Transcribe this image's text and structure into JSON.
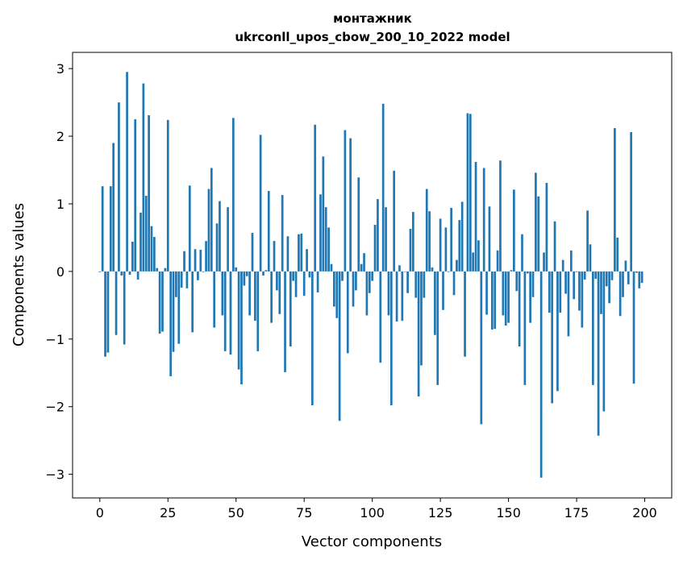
{
  "chart_data": {
    "type": "bar",
    "title": "монтажник",
    "subtitle": "ukrconll_upos_cbow_200_10_2022 model",
    "xlabel": "Vector components",
    "ylabel": "Components values",
    "xlim": [
      -10,
      209.9
    ],
    "ylim": [
      -3.35,
      3.24
    ],
    "xticks": [
      0,
      25,
      50,
      75,
      100,
      125,
      150,
      175,
      200
    ],
    "xtick_labels": [
      "0",
      "25",
      "50",
      "75",
      "100",
      "125",
      "150",
      "175",
      "200"
    ],
    "yticks": [
      -3,
      -2,
      -1,
      0,
      1,
      2,
      3
    ],
    "ytick_labels": [
      "−3",
      "−2",
      "−1",
      "0",
      "1",
      "2",
      "3"
    ],
    "grid": false,
    "bar_color": "#1f77b4",
    "values": [
      -0.01,
      1.26,
      -1.26,
      -1.2,
      1.26,
      1.9,
      -0.94,
      2.5,
      -0.06,
      -1.08,
      2.95,
      -0.05,
      0.44,
      2.25,
      -0.12,
      0.87,
      2.78,
      1.12,
      2.31,
      0.67,
      0.51,
      0.05,
      -0.92,
      -0.89,
      0.05,
      2.24,
      -1.55,
      -1.19,
      -0.38,
      -1.07,
      -0.24,
      0.3,
      -0.25,
      1.27,
      -0.9,
      0.33,
      -0.13,
      0.32,
      -0.01,
      0.45,
      1.22,
      1.53,
      -0.83,
      0.71,
      1.04,
      -0.65,
      -1.18,
      0.95,
      -1.23,
      2.27,
      0.06,
      -1.45,
      -1.67,
      -0.21,
      -0.07,
      -0.65,
      0.57,
      -0.73,
      -1.18,
      2.02,
      -0.06,
      0.02,
      1.19,
      -0.76,
      0.45,
      -0.28,
      -0.63,
      1.13,
      -1.49,
      0.52,
      -1.11,
      -0.14,
      -0.38,
      0.55,
      0.56,
      -0.36,
      0.33,
      -0.09,
      -1.98,
      2.17,
      -0.31,
      1.14,
      1.7,
      0.95,
      0.65,
      0.11,
      -0.52,
      -0.69,
      -2.21,
      -0.14,
      2.09,
      -1.21,
      1.97,
      -0.52,
      -0.28,
      1.39,
      0.11,
      0.27,
      -0.65,
      -0.32,
      -0.14,
      0.69,
      1.07,
      -1.35,
      2.48,
      0.95,
      -0.65,
      -1.98,
      1.49,
      -0.74,
      0.09,
      -0.73,
      0.0,
      -0.32,
      0.63,
      0.88,
      -0.39,
      -1.85,
      -1.39,
      -0.39,
      1.22,
      0.89,
      0.06,
      -0.94,
      -1.68,
      0.78,
      -0.57,
      0.65,
      -0.01,
      0.94,
      -0.35,
      0.17,
      0.76,
      1.03,
      -1.26,
      2.34,
      2.33,
      0.28,
      1.62,
      0.46,
      -2.26,
      1.53,
      -0.64,
      0.96,
      -0.86,
      -0.85,
      0.31,
      1.64,
      -0.65,
      -0.8,
      -0.76,
      0.02,
      1.21,
      -0.29,
      -1.11,
      0.55,
      -1.68,
      -0.03,
      -0.76,
      -0.38,
      1.46,
      1.11,
      -3.05,
      0.28,
      1.31,
      -0.61,
      -1.95,
      0.74,
      -1.77,
      -0.61,
      0.17,
      -0.33,
      -0.96,
      0.31,
      -0.41,
      -0.01,
      -0.58,
      -0.83,
      -0.12,
      0.9,
      0.4,
      -1.68,
      -0.11,
      -2.43,
      -0.63,
      -2.07,
      -0.22,
      -0.47,
      -0.13,
      2.12,
      0.5,
      -0.66,
      -0.38,
      0.16,
      -0.19,
      2.06,
      -1.66,
      -0.02,
      -0.25,
      -0.17
    ]
  }
}
